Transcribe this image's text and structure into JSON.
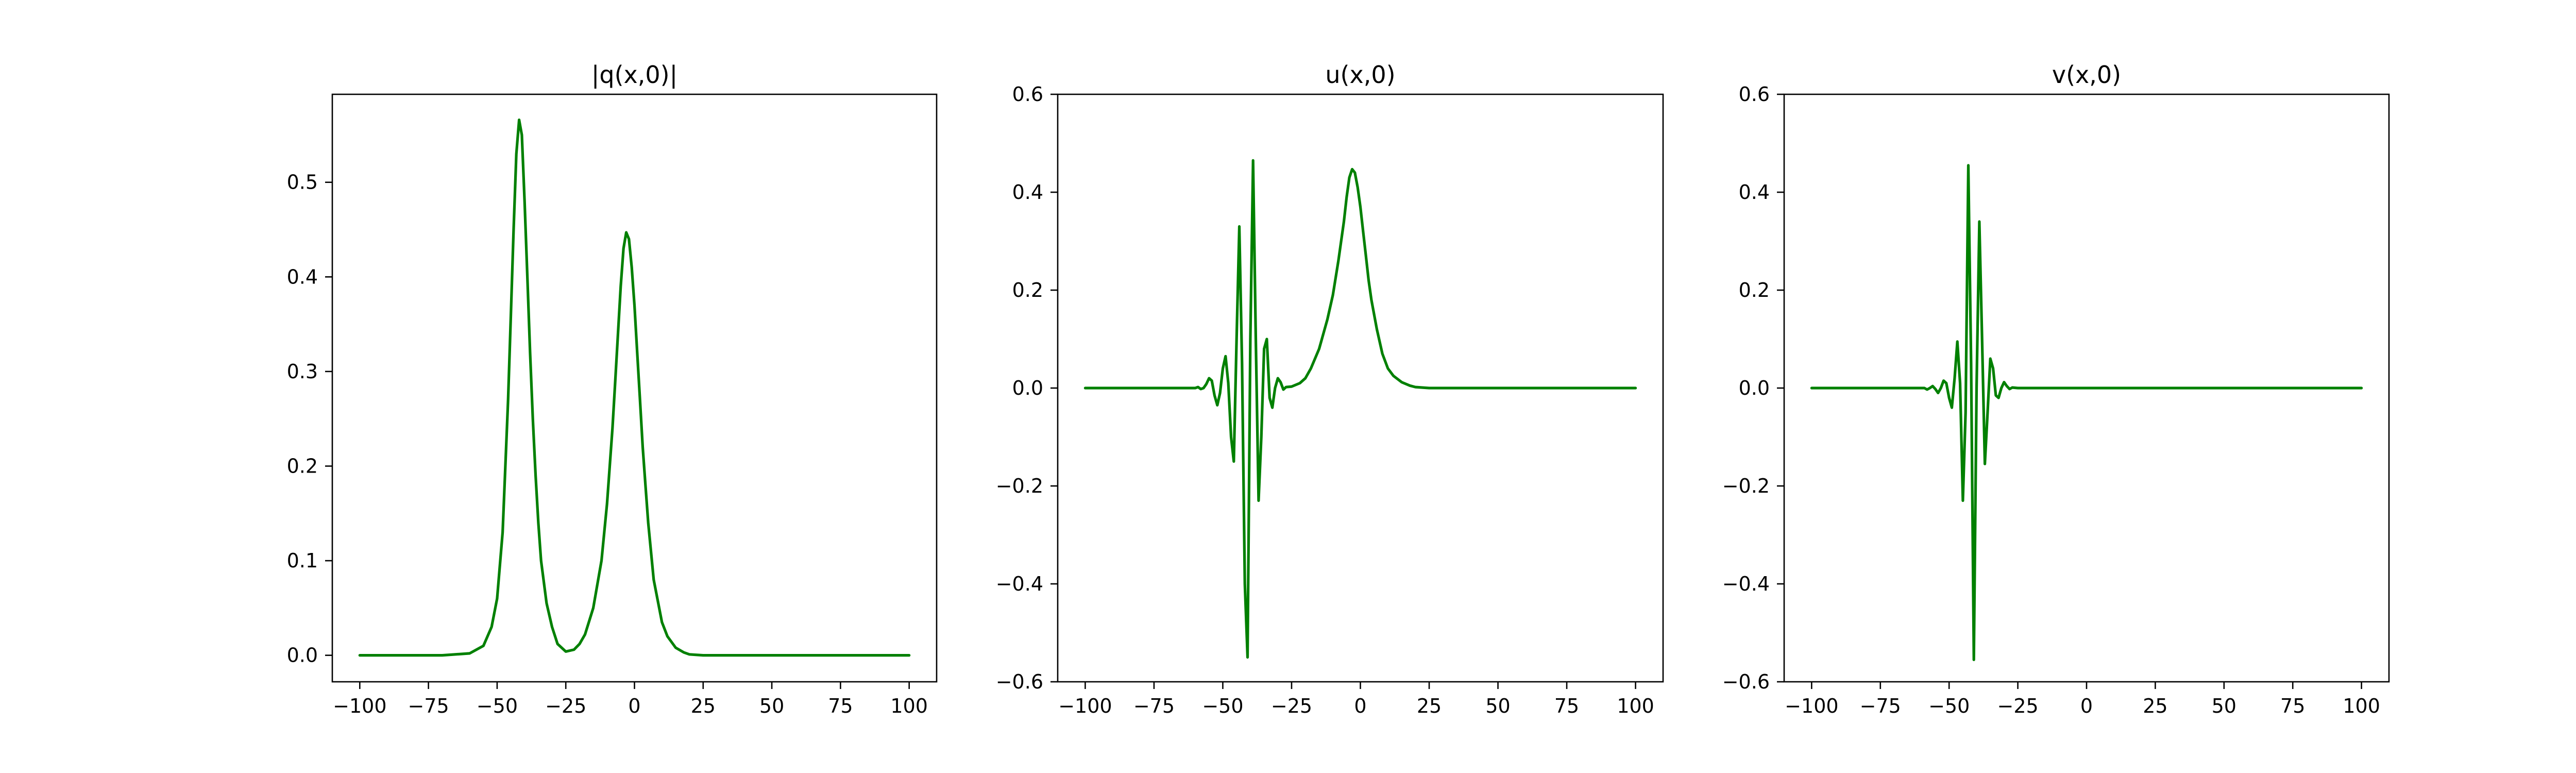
{
  "colors": {
    "series": "#008000",
    "axes": "#000000",
    "background": "#ffffff"
  },
  "chart_data": [
    {
      "type": "line",
      "title": "|q(x,0)|",
      "xlabel": "",
      "ylabel": "",
      "xlim": [
        -110,
        110
      ],
      "ylim": [
        -0.028,
        0.593
      ],
      "xticks": [
        -100,
        -75,
        -50,
        -25,
        0,
        25,
        50,
        75,
        100
      ],
      "xtick_labels": [
        "−100",
        "−75",
        "−50",
        "−25",
        "0",
        "25",
        "50",
        "75",
        "100"
      ],
      "yticks": [
        0.0,
        0.1,
        0.2,
        0.3,
        0.4,
        0.5
      ],
      "ytick_labels": [
        "0.0",
        "0.1",
        "0.2",
        "0.3",
        "0.4",
        "0.5"
      ],
      "grid": false,
      "series": [
        {
          "color": "#008000",
          "x": [
            -100,
            -80,
            -70,
            -60,
            -55,
            -52,
            -50,
            -48,
            -46,
            -45,
            -44,
            -43,
            -42,
            -41,
            -40,
            -39,
            -38,
            -37,
            -36,
            -35,
            -34,
            -32,
            -30,
            -28,
            -25,
            -22,
            -20,
            -18,
            -15,
            -12,
            -10,
            -8,
            -7,
            -6,
            -5,
            -4,
            -3,
            -2,
            -1,
            0,
            1,
            2,
            3,
            4,
            5,
            7,
            10,
            12,
            15,
            18,
            20,
            25,
            30,
            40,
            60,
            80,
            100
          ],
          "y": [
            0.0,
            0.0,
            0.0,
            0.002,
            0.01,
            0.03,
            0.06,
            0.13,
            0.27,
            0.36,
            0.45,
            0.53,
            0.566,
            0.55,
            0.48,
            0.4,
            0.32,
            0.25,
            0.19,
            0.14,
            0.1,
            0.055,
            0.03,
            0.012,
            0.004,
            0.006,
            0.012,
            0.022,
            0.05,
            0.1,
            0.16,
            0.24,
            0.29,
            0.34,
            0.39,
            0.43,
            0.447,
            0.44,
            0.41,
            0.37,
            0.32,
            0.27,
            0.22,
            0.18,
            0.14,
            0.08,
            0.035,
            0.02,
            0.008,
            0.003,
            0.001,
            0.0,
            0.0,
            0.0,
            0.0,
            0.0,
            0.0
          ]
        }
      ]
    },
    {
      "type": "line",
      "title": "u(x,0)",
      "xlabel": "",
      "ylabel": "",
      "xlim": [
        -110,
        110
      ],
      "ylim": [
        -0.6,
        0.6
      ],
      "xticks": [
        -100,
        -75,
        -50,
        -25,
        0,
        25,
        50,
        75,
        100
      ],
      "xtick_labels": [
        "−100",
        "−75",
        "−50",
        "−25",
        "0",
        "25",
        "50",
        "75",
        "100"
      ],
      "yticks": [
        -0.6,
        -0.4,
        -0.2,
        0.0,
        0.2,
        0.4,
        0.6
      ],
      "ytick_labels": [
        "−0.6",
        "−0.4",
        "−0.2",
        "0.0",
        "0.2",
        "0.4",
        "0.6"
      ],
      "grid": false,
      "series": [
        {
          "color": "#008000",
          "x": [
            -100,
            -80,
            -65,
            -60,
            -59,
            -58,
            -57,
            -56,
            -55,
            -54,
            -53,
            -52,
            -51,
            -50,
            -49,
            -48,
            -47,
            -46,
            -45,
            -44,
            -43,
            -42,
            -41,
            -40,
            -39,
            -38,
            -37,
            -36,
            -35,
            -34,
            -33,
            -32,
            -31,
            -30,
            -29,
            -28,
            -27,
            -25,
            -22,
            -20,
            -18,
            -15,
            -12,
            -10,
            -8,
            -6,
            -5,
            -4,
            -3,
            -2,
            -1,
            0,
            1,
            2,
            3,
            4,
            6,
            8,
            10,
            12,
            15,
            18,
            20,
            25,
            30,
            40,
            60,
            80,
            100
          ],
          "y": [
            0.0,
            0.0,
            0.0,
            0.0,
            0.002,
            -0.002,
            0.0,
            0.008,
            0.02,
            0.015,
            -0.015,
            -0.035,
            -0.01,
            0.04,
            0.065,
            0.01,
            -0.1,
            -0.15,
            0.1,
            0.33,
            0.05,
            -0.4,
            -0.55,
            0.1,
            0.465,
            0.1,
            -0.23,
            -0.1,
            0.08,
            0.1,
            -0.02,
            -0.04,
            0.0,
            0.02,
            0.012,
            -0.003,
            0.002,
            0.003,
            0.01,
            0.02,
            0.04,
            0.08,
            0.14,
            0.19,
            0.26,
            0.34,
            0.39,
            0.43,
            0.447,
            0.44,
            0.41,
            0.37,
            0.32,
            0.27,
            0.22,
            0.18,
            0.12,
            0.07,
            0.04,
            0.025,
            0.012,
            0.005,
            0.002,
            0.0,
            0.0,
            0.0,
            0.0,
            0.0,
            0.0
          ]
        }
      ]
    },
    {
      "type": "line",
      "title": "v(x,0)",
      "xlabel": "",
      "ylabel": "",
      "xlim": [
        -110,
        110
      ],
      "ylim": [
        -0.6,
        0.6
      ],
      "xticks": [
        -100,
        -75,
        -50,
        -25,
        0,
        25,
        50,
        75,
        100
      ],
      "xtick_labels": [
        "−100",
        "−75",
        "−50",
        "−25",
        "0",
        "25",
        "50",
        "75",
        "100"
      ],
      "yticks": [
        -0.6,
        -0.4,
        -0.2,
        0.0,
        0.2,
        0.4,
        0.6
      ],
      "ytick_labels": [
        "−0.6",
        "−0.4",
        "−0.2",
        "0.0",
        "0.2",
        "0.4",
        "0.6"
      ],
      "grid": false,
      "series": [
        {
          "color": "#008000",
          "x": [
            -100,
            -80,
            -65,
            -60,
            -59,
            -58,
            -57,
            -56,
            -55,
            -54,
            -53,
            -52,
            -51,
            -50,
            -49,
            -48,
            -47,
            -46,
            -45,
            -44,
            -43,
            -42,
            -41,
            -40,
            -39,
            -38,
            -37,
            -36,
            -35,
            -34,
            -33,
            -32,
            -31,
            -30,
            -29,
            -28,
            -27,
            -25,
            -20,
            -10,
            0,
            20,
            40,
            60,
            80,
            100
          ],
          "y": [
            0.0,
            0.0,
            0.0,
            0.0,
            0.0,
            -0.003,
            0.0,
            0.004,
            -0.002,
            -0.01,
            0.0,
            0.015,
            0.01,
            -0.02,
            -0.04,
            0.02,
            0.095,
            0.01,
            -0.23,
            -0.05,
            0.455,
            0.05,
            -0.555,
            0.0,
            0.34,
            0.1,
            -0.155,
            -0.05,
            0.06,
            0.04,
            -0.015,
            -0.02,
            0.0,
            0.012,
            0.004,
            -0.002,
            0.001,
            0.0,
            0.0,
            0.0,
            0.0,
            0.0,
            0.0,
            0.0,
            0.0,
            0.0
          ]
        }
      ]
    }
  ]
}
